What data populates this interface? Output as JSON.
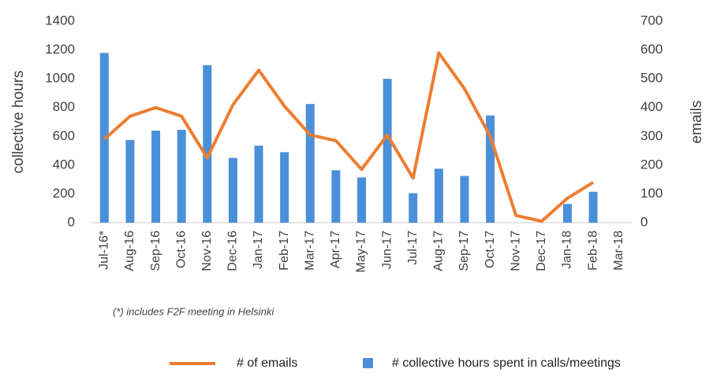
{
  "chart_data": {
    "type": "bar-line",
    "categories": [
      "Jul-16*",
      "Aug-16",
      "Sep-16",
      "Oct-16",
      "Nov-16",
      "Dec-16",
      "Jan-17",
      "Feb-17",
      "Mar-17",
      "Apr-17",
      "May-17",
      "Jun-17",
      "Jul-17",
      "Aug-17",
      "Sep-17",
      "Oct-17",
      "Nov-17",
      "Dec-17",
      "Jan-18",
      "Feb-18",
      "Mar-18"
    ],
    "series": [
      {
        "name": "# collective hours spent in calls/meetings",
        "type": "bar",
        "color": "#4a90d9",
        "axis": "y",
        "values": [
          1180,
          575,
          640,
          645,
          1095,
          450,
          535,
          490,
          825,
          365,
          315,
          1000,
          205,
          375,
          325,
          745,
          null,
          null,
          130,
          215,
          null
        ]
      },
      {
        "name": "# of emails",
        "type": "line",
        "color": "#ed7d31",
        "axis": "y2",
        "values": [
          290,
          370,
          400,
          370,
          225,
          410,
          530,
          405,
          305,
          285,
          185,
          305,
          155,
          590,
          465,
          300,
          25,
          5,
          85,
          140,
          null
        ]
      }
    ],
    "ylabel": "collective hours",
    "y2label": "emails",
    "ylim": [
      0,
      1400
    ],
    "yticks": [
      0,
      200,
      400,
      600,
      800,
      1000,
      1200,
      1400
    ],
    "y2lim": [
      0,
      700
    ],
    "y2ticks": [
      0,
      100,
      200,
      300,
      400,
      500,
      600,
      700
    ],
    "annotation": "(*) includes F2F meeting in Helsinki"
  }
}
